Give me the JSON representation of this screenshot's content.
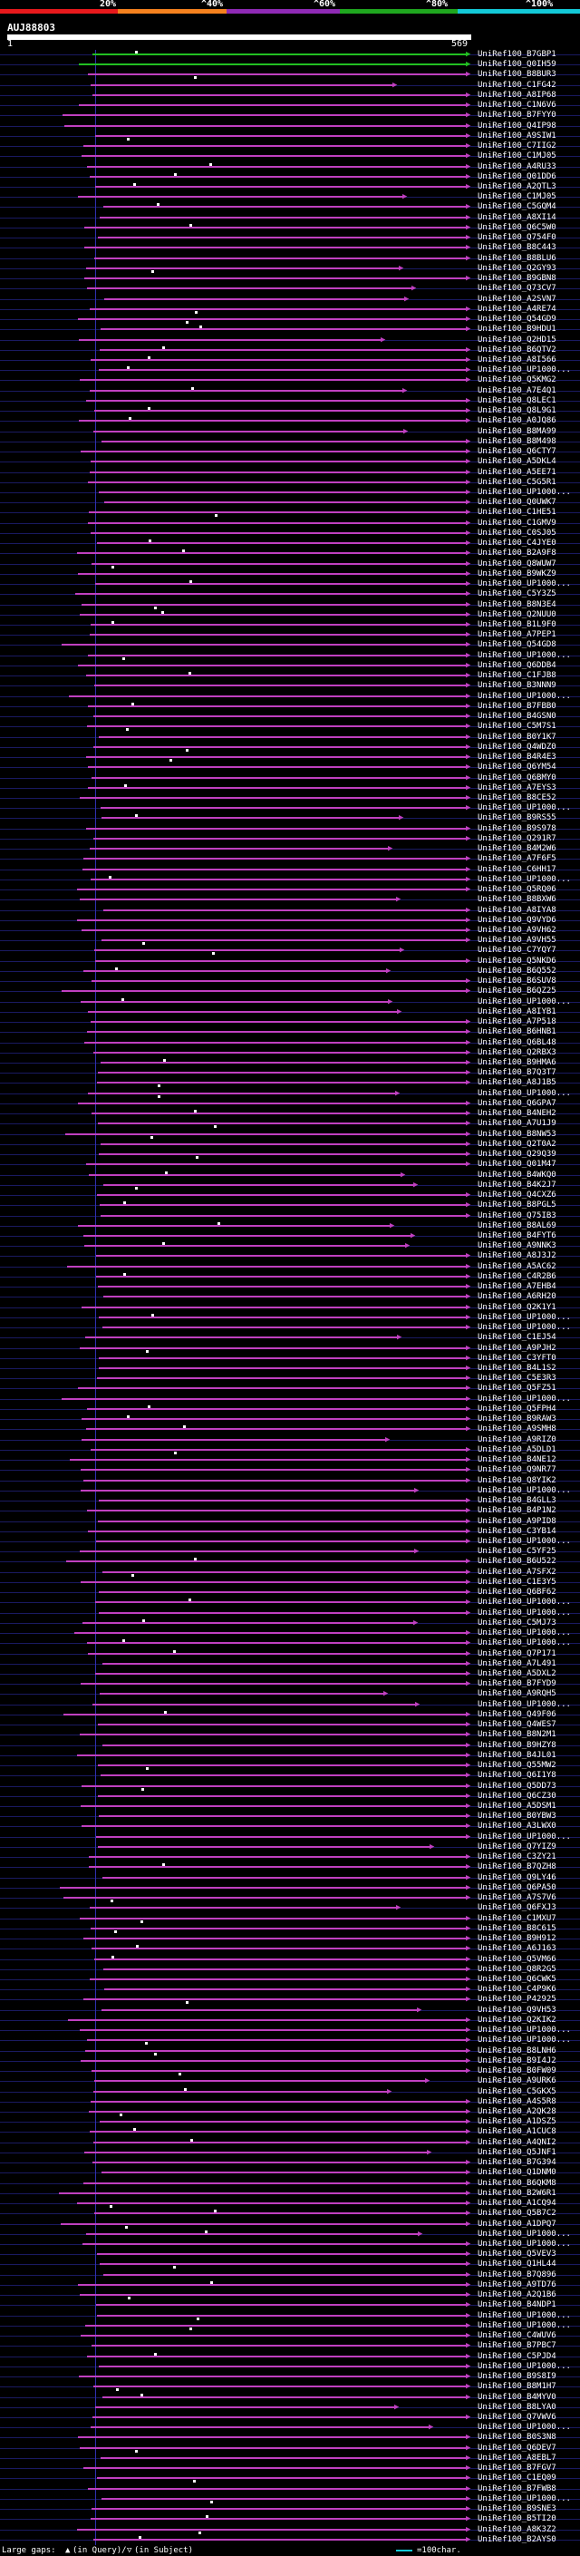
{
  "scale": {
    "labels": [
      "20%",
      "^40%",
      "^60%",
      "^80%",
      "^100%"
    ],
    "segments": [
      {
        "color": "#e8191c"
      },
      {
        "color": "#f5811e"
      },
      {
        "color": "#8f2ab5"
      },
      {
        "color": "#1fa71f"
      },
      {
        "color": "#13c9d8"
      }
    ]
  },
  "query": {
    "id": "AUJ88803",
    "start": "1",
    "length": "569"
  },
  "colors": {
    "hit": "#c040c0",
    "top_hit": "#22c022",
    "guide": "#3030b0",
    "row_a": "#000040",
    "row_b": "#000000"
  },
  "footer": {
    "label": "Large gaps:",
    "legend": "(in Query)/",
    "legend2": "(in Subject)",
    "scale_text": "=100char."
  },
  "hits": [
    "UniRef100_B7GBP1",
    "UniRef100_Q0IH59",
    "UniRef100_B8BUR3",
    "UniRef100_C1FG42",
    "UniRef100_A8IP68",
    "UniRef100_C1N6V6",
    "UniRef100_B7FYY0",
    "UniRef100_Q4IP98",
    "UniRef100_A9SIW1",
    "UniRef100_C7IIG2",
    "UniRef100_C1MJ05",
    "UniRef100_A4RU33",
    "UniRef100_Q01DD6",
    "UniRef100_A2QTL3",
    "UniRef100_C1MJ05",
    "UniRef100_C5GQM4",
    "UniRef100_A8XI14",
    "UniRef100_Q6C5W0",
    "UniRef100_Q754F0",
    "UniRef100_B8C443",
    "UniRef100_B8BLU6",
    "UniRef100_Q2GY93",
    "UniRef100_B9GBN8",
    "UniRef100_Q73CV7",
    "UniRef100_A2SVN7",
    "UniRef100_A4RE74",
    "UniRef100_Q54GD9",
    "UniRef100_B9HDU1",
    "UniRef100_Q2HD15",
    "UniRef100_B6QTV2",
    "UniRef100_A8I566",
    "UniRef100_UP1000...",
    "UniRef100_Q5KMG2",
    "UniRef100_A7E4Q1",
    "UniRef100_Q8LEC1",
    "UniRef100_Q8L9G1",
    "UniRef100_A0JQ86",
    "UniRef100_B8MA99",
    "UniRef100_B8M498",
    "UniRef100_Q6CTY7",
    "UniRef100_A5DKL4",
    "UniRef100_A5EE71",
    "UniRef100_C5G5R1",
    "UniRef100_UP1000...",
    "UniRef100_Q0UWK7",
    "UniRef100_C1HE51",
    "UniRef100_C1GMV9",
    "UniRef100_C0SJ05",
    "UniRef100_C4JYE0",
    "UniRef100_B2A9F8",
    "UniRef100_Q8WUW7",
    "UniRef100_B9WKZ9",
    "UniRef100_UP1000...",
    "UniRef100_C5Y3Z5",
    "UniRef100_B8N3E4",
    "UniRef100_Q2NUU0",
    "UniRef100_B1L9F0",
    "UniRef100_A7PEP1",
    "UniRef100_Q54GD8",
    "UniRef100_UP1000...",
    "UniRef100_Q6DDB4",
    "UniRef100_C1FJB8",
    "UniRef100_B3NNN9",
    "UniRef100_UP1000...",
    "UniRef100_B7FBB0",
    "UniRef100_B4GSN0",
    "UniRef100_C5M7S1",
    "UniRef100_B0Y1K7",
    "UniRef100_Q4WDZ0",
    "UniRef100_B4R4E3",
    "UniRef100_Q6YM54",
    "UniRef100_Q6BMY0",
    "UniRef100_A7EYS3",
    "UniRef100_B8CE52",
    "UniRef100_UP1000...",
    "UniRef100_B9RS55",
    "UniRef100_B9S978",
    "UniRef100_Q291R7",
    "UniRef100_B4M2W6",
    "UniRef100_A7F6F5",
    "UniRef100_C6HH17",
    "UniRef100_UP1000...",
    "UniRef100_Q5RQ06",
    "UniRef100_B8BXW6",
    "UniRef100_A8IYA8",
    "UniRef100_Q9VYD6",
    "UniRef100_A9VH62",
    "UniRef100_A9VH55",
    "UniRef100_C7YQY7",
    "UniRef100_Q5NKD6",
    "UniRef100_B6Q552",
    "UniRef100_B6SUV8",
    "UniRef100_B6QZ25",
    "UniRef100_UP1000...",
    "UniRef100_A8IYB1",
    "UniRef100_A7P518",
    "UniRef100_B6HNB1",
    "UniRef100_Q6BL48",
    "UniRef100_Q2RBX3",
    "UniRef100_B9HMA6",
    "UniRef100_B7Q3T7",
    "UniRef100_A8J1B5",
    "UniRef100_UP1000...",
    "UniRef100_Q6GPA7",
    "UniRef100_B4NEH2",
    "UniRef100_A7U1J9",
    "UniRef100_B8NW53",
    "UniRef100_Q2T0A2",
    "UniRef100_Q29Q39",
    "UniRef100_Q01M47",
    "UniRef100_B4WKQ0",
    "UniRef100_B4K2J7",
    "UniRef100_Q4CXZ6",
    "UniRef100_B8PGL5",
    "UniRef100_Q75IB3",
    "UniRef100_B8AL69",
    "UniRef100_B4FYT6",
    "UniRef100_A9NNK3",
    "UniRef100_A8J3J2",
    "UniRef100_A5AC62",
    "UniRef100_C4R2B6",
    "UniRef100_A7EHB4",
    "UniRef100_A6RH20",
    "UniRef100_Q2K1Y1",
    "UniRef100_UP1000...",
    "UniRef100_UP1000...",
    "UniRef100_C1EJ54",
    "UniRef100_A9PJH2",
    "UniRef100_C3YFT0",
    "UniRef100_B4L1S2",
    "UniRef100_C5E3R3",
    "UniRef100_Q5FZ51",
    "UniRef100_UP1000...",
    "UniRef100_Q5FPH4",
    "UniRef100_B9RAW3",
    "UniRef100_A9SMH8",
    "UniRef100_A9RIZ0",
    "UniRef100_A5DLD1",
    "UniRef100_B4NE12",
    "UniRef100_Q9NR77",
    "UniRef100_Q8YIK2",
    "UniRef100_UP1000...",
    "UniRef100_B4GLL3",
    "UniRef100_B4P1N2",
    "UniRef100_A9PID8",
    "UniRef100_C3YB14",
    "UniRef100_UP1000...",
    "UniRef100_C5YF25",
    "UniRef100_B6U522",
    "UniRef100_A7SFX2",
    "UniRef100_C1E3Y5",
    "UniRef100_Q6BF62",
    "UniRef100_UP1000...",
    "UniRef100_UP1000...",
    "UniRef100_C5MJ73",
    "UniRef100_UP1000...",
    "UniRef100_UP1000...",
    "UniRef100_Q7P171",
    "UniRef100_A7L491",
    "UniRef100_A5DXL2",
    "UniRef100_B7FYD9",
    "UniRef100_A9RQH5",
    "UniRef100_UP1000...",
    "UniRef100_Q49F06",
    "UniRef100_Q4WES7",
    "UniRef100_B8N2M1",
    "UniRef100_B9HZY8",
    "UniRef100_B4JL01",
    "UniRef100_Q55MW2",
    "UniRef100_Q6I1Y8",
    "UniRef100_Q5DD73",
    "UniRef100_Q6CZ30",
    "UniRef100_A5DSM1",
    "UniRef100_B0YBW3",
    "UniRef100_A3LWX0",
    "UniRef100_UP1000...",
    "UniRef100_Q7YIZ9",
    "UniRef100_C3ZY21",
    "UniRef100_B7QZH8",
    "UniRef100_Q9LY46",
    "UniRef100_Q6PA50",
    "UniRef100_A7S7V6",
    "UniRef100_Q6FXJ3",
    "UniRef100_C1MXU7",
    "UniRef100_B8C615",
    "UniRef100_B9H912",
    "UniRef100_A6J163",
    "UniRef100_Q5VM66",
    "UniRef100_Q8R2G5",
    "UniRef100_Q6CWK5",
    "UniRef100_C4P9K6",
    "UniRef100_P42925",
    "UniRef100_Q9VH53",
    "UniRef100_Q2KIK2",
    "UniRef100_UP1000...",
    "UniRef100_UP1000...",
    "UniRef100_B8LNH6",
    "UniRef100_B9I4J2",
    "UniRef100_B0FW09",
    "UniRef100_A9URK6",
    "UniRef100_C5GKX5",
    "UniRef100_A4S5R8",
    "UniRef100_A2QK28",
    "UniRef100_A1DSZ5",
    "UniRef100_A1CUC8",
    "UniRef100_A4QNI2",
    "UniRef100_Q5JNF1",
    "UniRef100_B7G394",
    "UniRef100_Q1DNM0",
    "UniRef100_B6QKM8",
    "UniRef100_B2W6R1",
    "UniRef100_A1CQ94",
    "UniRef100_Q5B7C2",
    "UniRef100_A1DPQ7",
    "UniRef100_UP1000...",
    "UniRef100_UP1000...",
    "UniRef100_Q5VEV3",
    "UniRef100_Q1HL44",
    "UniRef100_B7Q896",
    "UniRef100_A9TD76",
    "UniRef100_A2Q1B6",
    "UniRef100_B4NDP1",
    "UniRef100_UP1000...",
    "UniRef100_UP1000...",
    "UniRef100_C4WUV6",
    "UniRef100_B7PBC7",
    "UniRef100_C5PJD4",
    "UniRef100_UP1000...",
    "UniRef100_B9S8I9",
    "UniRef100_B8M1H7",
    "UniRef100_B4MYV0",
    "UniRef100_B8LYA0",
    "UniRef100_Q7VWV6",
    "UniRef100_UP1000...",
    "UniRef100_B0S3N8",
    "UniRef100_Q6DEV7",
    "UniRef100_A8EBL7",
    "UniRef100_B7FGV7",
    "UniRef100_C1EQ09",
    "UniRef100_B7FWB8",
    "UniRef100_UP1000...",
    "UniRef100_B9SNE3",
    "UniRef100_B5TI20",
    "UniRef100_A8K3Z2",
    "UniRef100_B2AYS0"
  ]
}
